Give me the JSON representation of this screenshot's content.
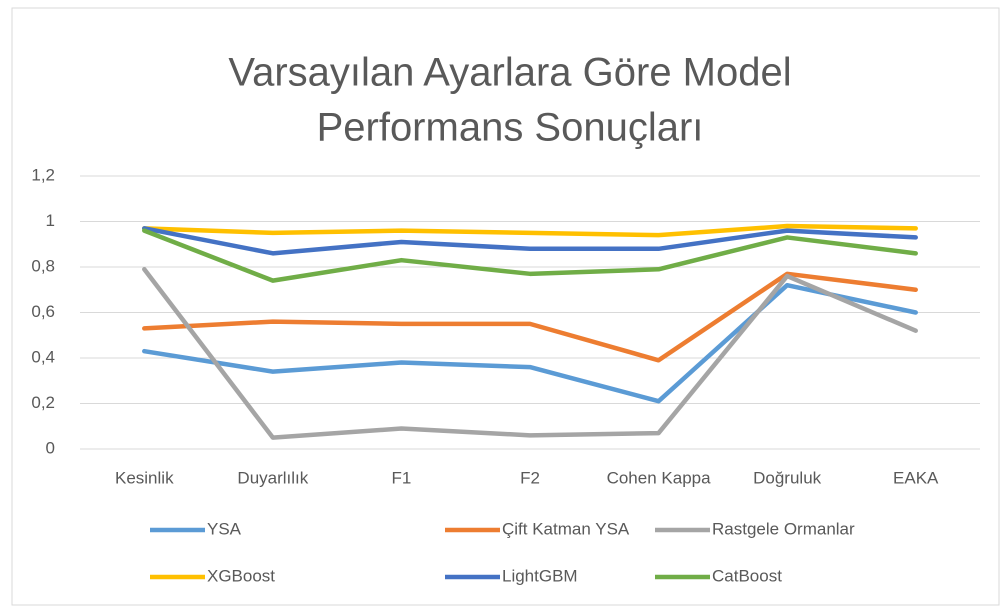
{
  "chart_data": {
    "type": "line",
    "title": [
      "Varsayılan Ayarlara Göre Model",
      "Performans Sonuçları"
    ],
    "categories": [
      "Kesinlik",
      "Duyarlılık",
      "F1",
      "F2",
      "Cohen Kappa",
      "Doğruluk",
      "EAKA"
    ],
    "series": [
      {
        "name": "YSA",
        "color": "#5b9bd5",
        "values": [
          0.43,
          0.34,
          0.38,
          0.36,
          0.21,
          0.72,
          0.6
        ]
      },
      {
        "name": "Çift Katman YSA",
        "color": "#ed7d31",
        "values": [
          0.53,
          0.56,
          0.55,
          0.55,
          0.39,
          0.77,
          0.7
        ]
      },
      {
        "name": "Rastgele Ormanlar",
        "color": "#a5a5a5",
        "values": [
          0.79,
          0.05,
          0.09,
          0.06,
          0.07,
          0.76,
          0.52
        ]
      },
      {
        "name": "XGBoost",
        "color": "#ffc000",
        "values": [
          0.97,
          0.95,
          0.96,
          0.95,
          0.94,
          0.98,
          0.97
        ]
      },
      {
        "name": "LightGBM",
        "color": "#4472c4",
        "values": [
          0.97,
          0.86,
          0.91,
          0.88,
          0.88,
          0.96,
          0.93
        ]
      },
      {
        "name": "CatBoost",
        "color": "#70ad47",
        "values": [
          0.96,
          0.74,
          0.83,
          0.77,
          0.79,
          0.93,
          0.86
        ]
      }
    ],
    "ylim": [
      0,
      1.2
    ],
    "yticks": [
      0,
      {
        "value": 0.2,
        "label": "0,2"
      },
      {
        "value": 0.4,
        "label": "0,4"
      },
      {
        "value": 0.6,
        "label": "0,6"
      },
      {
        "value": 0.8,
        "label": "0,8"
      },
      1,
      {
        "value": 1.2,
        "label": "1,2"
      }
    ],
    "grid": true,
    "legend": "bottom"
  }
}
